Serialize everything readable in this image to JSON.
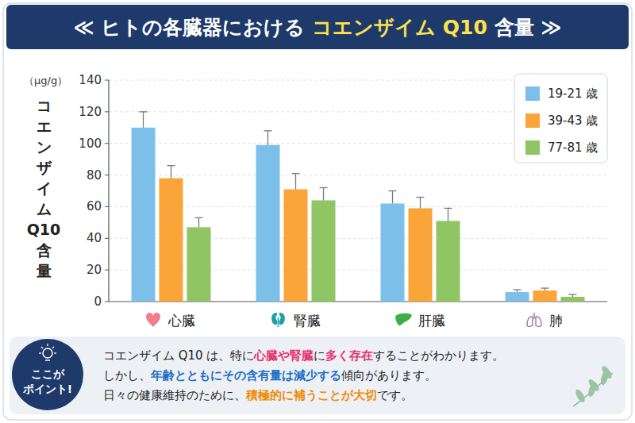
{
  "header": {
    "title": [
      {
        "text": "≪ ヒトの各臓器における "
      },
      {
        "text": "コエンザイム Q10",
        "color": "#ffe14a"
      },
      {
        "text": " 含量 ≫"
      }
    ]
  },
  "chart_data": {
    "type": "bar",
    "ylabel": "コエンザイム Q10 含量",
    "yunit": "（μg/g）",
    "categories": [
      "心臓",
      "腎臓",
      "肝臓",
      "肺"
    ],
    "series": [
      {
        "name": "19-21 歳",
        "color": "#7cc0ea",
        "values": [
          110,
          99,
          62,
          6
        ],
        "errors": [
          10,
          9,
          8,
          1.5
        ]
      },
      {
        "name": "39-43 歳",
        "color": "#f9a53a",
        "values": [
          78,
          71,
          59,
          7
        ],
        "errors": [
          8,
          10,
          7,
          1.5
        ]
      },
      {
        "name": "77-81 歳",
        "color": "#8fc663",
        "values": [
          47,
          64,
          51,
          3
        ],
        "errors": [
          6,
          8,
          8,
          1.5
        ]
      }
    ],
    "ylim": [
      0,
      140
    ],
    "yticks": [
      0,
      20,
      40,
      60,
      80,
      100,
      120,
      140
    ],
    "grid": true,
    "legend": "upper right"
  },
  "point": {
    "badge": [
      "ここが",
      "ポイント!"
    ],
    "lines": [
      [
        {
          "text": "コエンザイム Q10 は、特に"
        },
        {
          "text": "心臓や腎臓",
          "color": "#e8336f"
        },
        {
          "text": "に"
        },
        {
          "text": "多く存在",
          "color": "#e8336f"
        },
        {
          "text": "することがわかります。"
        }
      ],
      [
        {
          "text": "しかし、"
        },
        {
          "text": "年齢とともにその含有量は減少する",
          "color": "#1f6fc4"
        },
        {
          "text": "傾向があります。"
        }
      ],
      [
        {
          "text": "日々の健康維持のために、"
        },
        {
          "text": "積極的に補うことが大切",
          "color": "#f08a00"
        },
        {
          "text": "です。"
        }
      ]
    ]
  }
}
